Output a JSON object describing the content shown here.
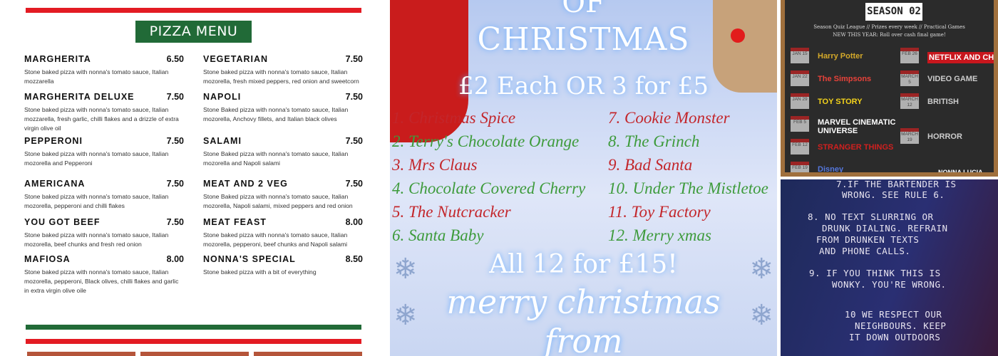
{
  "pizza_menu": {
    "title": "PIZZA MENU",
    "colors": {
      "green": "#216a37",
      "red": "#e31b23"
    },
    "left": [
      {
        "name": "MARGHERITA",
        "price": "6.50",
        "desc": "Stone baked pizza with nonna's tomato sauce, Italian mozzarella"
      },
      {
        "name": "MARGHERITA DELUXE",
        "price": "7.50",
        "desc": "Stone baked pizza with nonna's tomato sauce, Italian mozzarella, fresh garlic, chilli flakes and a drizzle of extra virgin olive oil"
      },
      {
        "name": "PEPPERONI",
        "price": "7.50",
        "desc": "Stone baked pizza with nonna's tomato sauce, Italian mozorella and Pepperoni"
      },
      {
        "name": "AMERICANA",
        "price": "7.50",
        "desc": "Stone baked pizza with nonna's tomato sauce, Italian mozorella, pepperoni and chilli flakes"
      },
      {
        "name": "YOU GOT BEEF",
        "price": "7.50",
        "desc": "Stone baked pizza with nonna's tomato sauce, Italian mozorella, beef chunks and fresh red onion"
      },
      {
        "name": "MAFIOSA",
        "price": "8.00",
        "desc": "Stone baked pizza with nonna's tomato sauce, Italian mozorella, pepperoni, Black olives, chilli flakes and garlic in extra virgin olive oile"
      }
    ],
    "right": [
      {
        "name": "VEGETARIAN",
        "price": "7.50",
        "desc": "Stone baked pizza with nonna's tomato sauce, Italian mozorella, fresh mixed peppers, red onion and sweetcorn"
      },
      {
        "name": "NAPOLI",
        "price": "7.50",
        "desc": "Stone Baked pizza with nonna's tomato sauce, Italian mozorella, Anchovy fillets, and Italian black olives"
      },
      {
        "name": "SALAMI",
        "price": "7.50",
        "desc": "Stone Baked pizza with nonna's tomato sauce, Italian mozorella and Napoli salami"
      },
      {
        "name": "MEAT AND 2 VEG",
        "price": "7.50",
        "desc": "Stone Baked pizza with nonna's tomato sauce, Italian mozorella, Napoli salami, mixed peppers and red onion"
      },
      {
        "name": "MEAT FEAST",
        "price": "8.00",
        "desc": "Stone baked pizza with nonna's tomato sauce, Italian mozorella, pepperoni, beef chunks and Napoli salami"
      },
      {
        "name": "NONNA'S SPECIAL",
        "price": "8.50",
        "desc": "Stone baked pizza with a bit of everything"
      }
    ]
  },
  "christmas": {
    "heading_top": "OF",
    "heading": "CHRISTMAS",
    "offer": "£2 Each OR 3 for £5",
    "items": [
      "1. Christmas Spice",
      "2. Terry's Chocolate Orange",
      "3. Mrs Claus",
      "4. Chocolate Covered Cherry",
      "5. The Nutcracker",
      "6. Santa Baby",
      "7. Cookie Monster",
      "8. The Grinch",
      "9. Bad Santa",
      "10. Under The Mistletoe",
      "11. Toy Factory",
      "12. Merry xmas"
    ],
    "colors": {
      "red": "#c3262b",
      "green": "#3e9b3c"
    },
    "deal": "All 12 for £15!",
    "greeting": "merry christmas",
    "from": "from"
  },
  "quiz": {
    "season": "SEASON 02",
    "line1": "Season Quiz League // Prizes every week // Practical Games",
    "line2": "NEW THIS YEAR: Roll over cash final game!",
    "left": [
      {
        "date": "JAN 15",
        "show": "Harry Potter"
      },
      {
        "date": "JAN 22",
        "show": "The Simpsons"
      },
      {
        "date": "JAN 29",
        "show": "TOY STORY"
      },
      {
        "date": "FEB 5",
        "show": "MARVEL CINEMATIC UNIVERSE"
      },
      {
        "date": "FEB 12",
        "show": "STRANGER THINGS"
      },
      {
        "date": "FEB 19",
        "show": "Disney"
      }
    ],
    "right": [
      {
        "date": "FEB 26",
        "show": "NETFLIX AND CHILL"
      },
      {
        "date": "MARCH 5",
        "show": "VIDEO GAME"
      },
      {
        "date": "MARCH 12",
        "show": "BRITISH"
      },
      {
        "date": "MARCH 19",
        "show": "HORROR"
      }
    ],
    "footer": "NONNA LUCIA"
  },
  "rules": [
    "7.IF THE BARTENDER IS",
    "WRONG. SEE RULE 6.",
    "8. NO TEXT SLURRING OR",
    "DRUNK DIALING. REFRAIN",
    "FROM DRUNKEN TEXTS",
    "AND PHONE CALLS.",
    "9. IF YOU THINK THIS IS",
    "WONKY. YOU'RE WRONG.",
    "10 WE RESPECT OUR",
    "NEIGHBOURS. KEEP",
    "IT DOWN OUTDOORS"
  ]
}
